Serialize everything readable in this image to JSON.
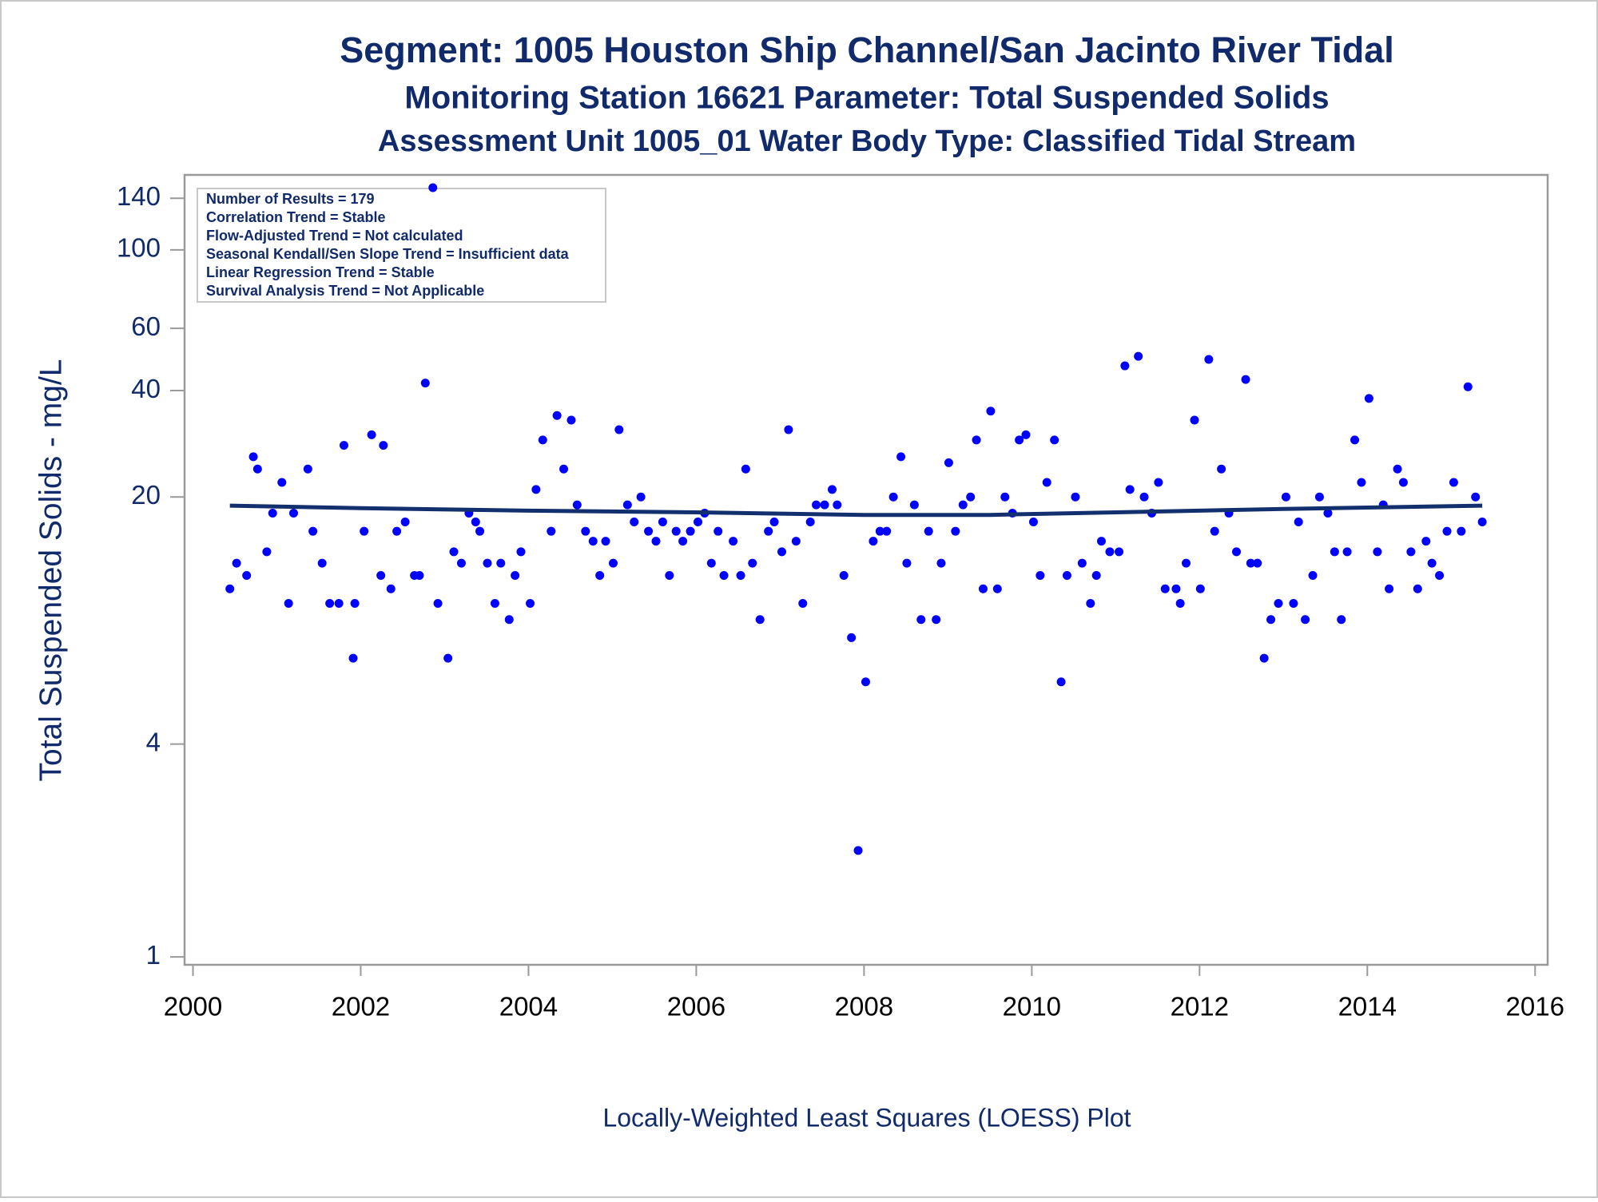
{
  "chart_data": {
    "type": "scatter",
    "title": "Segment: 1005  Houston Ship Channel/San Jacinto River Tidal",
    "subtitle": "Monitoring Station 16621 Parameter: Total Suspended Solids",
    "subtitle2": "Assessment Unit 1005_01   Water Body Type: Classified Tidal Stream",
    "ylabel": "Total Suspended Solids - mg/L",
    "footnote": "Locally-Weighted Least Squares (LOESS) Plot",
    "annotations": [
      "Number of Results = 179",
      "Correlation Trend = Stable",
      "Flow-Adjusted Trend = Not calculated",
      "Seasonal Kendall/Sen Slope Trend = Insufficient data",
      "Linear Regression Trend = Stable",
      "Survival Analysis Trend = Not Applicable"
    ],
    "yscale": "log",
    "xlim": [
      1999.9,
      2016.15
    ],
    "xticks": [
      2000,
      2002,
      2004,
      2006,
      2008,
      2010,
      2012,
      2014,
      2016
    ],
    "ylim": [
      0.95,
      163
    ],
    "yticks": [
      1,
      4,
      20,
      40,
      60,
      100,
      140
    ],
    "series": [
      {
        "type": "scatter",
        "color": "#0000ff",
        "x": [
          2000.44,
          2000.52,
          2000.64,
          2000.72,
          2000.77,
          2000.88,
          2000.95,
          2001.06,
          2001.14,
          2001.2,
          2001.37,
          2001.43,
          2001.54,
          2001.63,
          2001.74,
          2001.8,
          2001.91,
          2001.93,
          2002.04,
          2002.13,
          2002.24,
          2002.27,
          2002.36,
          2002.43,
          2002.53,
          2002.64,
          2002.7,
          2002.77,
          2002.86,
          2002.92,
          2003.04,
          2003.11,
          2003.2,
          2003.29,
          2003.37,
          2003.42,
          2003.51,
          2003.6,
          2003.67,
          2003.77,
          2003.84,
          2003.91,
          2004.02,
          2004.09,
          2004.17,
          2004.27,
          2004.34,
          2004.42,
          2004.51,
          2004.58,
          2004.68,
          2004.77,
          2004.85,
          2004.92,
          2005.01,
          2005.08,
          2005.18,
          2005.26,
          2005.34,
          2005.43,
          2005.52,
          2005.6,
          2005.68,
          2005.76,
          2005.84,
          2005.93,
          2006.02,
          2006.1,
          2006.18,
          2006.26,
          2006.33,
          2006.44,
          2006.53,
          2006.59,
          2006.67,
          2006.76,
          2006.86,
          2006.93,
          2007.02,
          2007.1,
          2007.19,
          2007.27,
          2007.36,
          2007.43,
          2007.53,
          2007.62,
          2007.68,
          2007.76,
          2007.85,
          2007.93,
          2008.02,
          2008.11,
          2008.19,
          2008.27,
          2008.35,
          2008.44,
          2008.51,
          2008.6,
          2008.68,
          2008.77,
          2008.86,
          2008.92,
          2009.01,
          2009.09,
          2009.18,
          2009.27,
          2009.34,
          2009.42,
          2009.51,
          2009.59,
          2009.68,
          2009.77,
          2009.85,
          2009.93,
          2010.02,
          2010.1,
          2010.18,
          2010.27,
          2010.35,
          2010.42,
          2010.52,
          2010.6,
          2010.7,
          2010.77,
          2010.83,
          2010.93,
          2011.04,
          2011.11,
          2011.17,
          2011.27,
          2011.34,
          2011.43,
          2011.51,
          2011.59,
          2011.72,
          2011.77,
          2011.84,
          2011.94,
          2012.01,
          2012.11,
          2012.18,
          2012.26,
          2012.35,
          2012.44,
          2012.55,
          2012.61,
          2012.69,
          2012.77,
          2012.85,
          2012.94,
          2013.03,
          2013.12,
          2013.18,
          2013.26,
          2013.35,
          2013.43,
          2013.53,
          2013.61,
          2013.69,
          2013.76,
          2013.85,
          2013.93,
          2014.02,
          2014.12,
          2014.19,
          2014.26,
          2014.36,
          2014.43,
          2014.52,
          2014.6,
          2014.7,
          2014.77,
          2014.86,
          2014.95,
          2015.03,
          2015.12,
          2015.2,
          2015.29,
          2015.37
        ],
        "values": [
          11,
          13,
          12,
          26,
          24,
          14,
          18,
          22,
          10,
          18,
          24,
          16,
          13,
          10,
          10,
          28,
          7,
          10,
          16,
          30,
          12,
          28,
          11,
          16,
          17,
          12,
          12,
          42,
          150,
          10,
          7,
          14,
          13,
          18,
          17,
          16,
          13,
          10,
          13,
          9,
          12,
          14,
          10,
          21,
          29,
          16,
          34,
          24,
          33,
          19,
          16,
          15,
          12,
          15,
          13,
          31,
          19,
          17,
          20,
          16,
          15,
          17,
          12,
          16,
          15,
          16,
          17,
          18,
          13,
          16,
          12,
          15,
          12,
          24,
          13,
          9,
          16,
          17,
          14,
          31,
          15,
          10,
          17,
          19,
          19,
          21,
          19,
          12,
          8,
          2,
          6,
          15,
          16,
          16,
          20,
          26,
          13,
          19,
          9,
          16,
          9,
          13,
          25,
          16,
          19,
          20,
          29,
          11,
          35,
          11,
          20,
          18,
          29,
          30,
          17,
          12,
          22,
          29,
          6,
          12,
          20,
          13,
          10,
          12,
          15,
          14,
          14,
          47,
          21,
          50,
          20,
          18,
          22,
          11,
          11,
          10,
          13,
          33,
          11,
          49,
          16,
          24,
          18,
          14,
          43,
          13,
          13,
          7,
          9,
          10,
          20,
          10,
          17,
          9,
          12,
          20,
          18,
          14,
          9,
          14,
          29,
          22,
          38,
          14,
          19,
          11,
          24,
          22,
          14,
          11,
          15,
          13,
          12,
          16,
          22,
          16,
          41,
          20,
          17
        ]
      },
      {
        "type": "line",
        "color": "#13306e",
        "x": [
          2000.44,
          2002,
          2004,
          2006,
          2008,
          2009.5,
          2011,
          2013,
          2015.37
        ],
        "values": [
          18.9,
          18.6,
          18.3,
          18.1,
          17.8,
          17.8,
          18.1,
          18.5,
          18.9
        ]
      }
    ]
  }
}
